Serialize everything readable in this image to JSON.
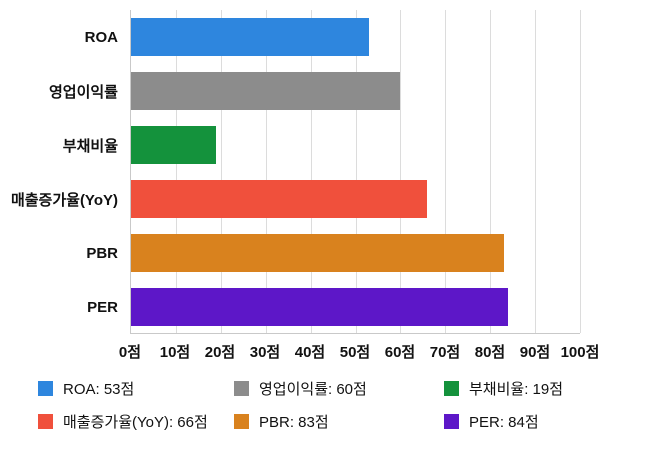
{
  "chart_data": {
    "type": "bar",
    "orientation": "horizontal",
    "title": "",
    "xlabel": "",
    "ylabel": "",
    "unit": "점",
    "categories": [
      "ROA",
      "영업이익률",
      "부채비율",
      "매출증가율(YoY)",
      "PBR",
      "PER"
    ],
    "values": [
      53,
      60,
      19,
      66,
      83,
      84
    ],
    "colors": [
      "#2e86de",
      "#8c8c8c",
      "#14923c",
      "#f0503c",
      "#d9821e",
      "#5d17c8"
    ],
    "xlim": [
      0,
      100
    ],
    "x_ticks": [
      0,
      10,
      20,
      30,
      40,
      50,
      60,
      70,
      80,
      90,
      100
    ],
    "x_tick_labels": [
      "0점",
      "10점",
      "20점",
      "30점",
      "40점",
      "50점",
      "60점",
      "70점",
      "80점",
      "90점",
      "100점"
    ],
    "grid": true,
    "legend_position": "bottom",
    "legend": [
      {
        "label": "ROA: 53점"
      },
      {
        "label": "영업이익률: 60점"
      },
      {
        "label": "부채비율: 19점"
      },
      {
        "label": "매출증가율(YoY): 66점"
      },
      {
        "label": "PBR: 83점"
      },
      {
        "label": "PER: 84점"
      }
    ]
  }
}
